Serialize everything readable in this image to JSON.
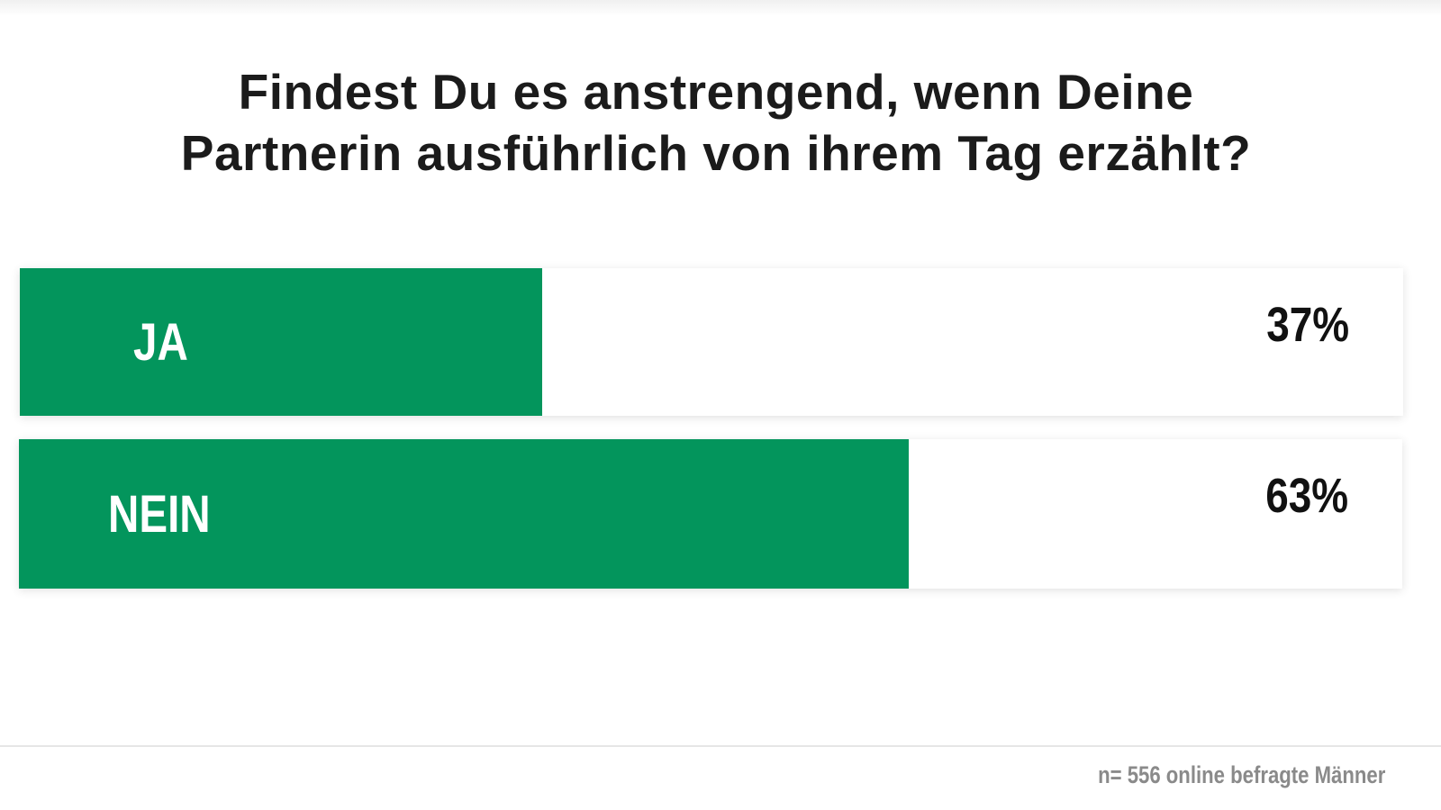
{
  "chart_data": {
    "type": "bar",
    "orientation": "horizontal",
    "title": "Findest Du es anstrengend, wenn Deine Partnerin ausführlich von ihrem Tag erzählt?",
    "title_lines": [
      "Findest Du es anstrengend, wenn Deine",
      "Partnerin ausführlich von ihrem Tag erzählt?"
    ],
    "categories": [
      "JA",
      "NEIN"
    ],
    "values": [
      37,
      63
    ],
    "value_labels": [
      "37%",
      "63%"
    ],
    "unit": "%",
    "xlim": [
      0,
      100
    ],
    "grid": false,
    "legend": "none",
    "bar_color": "#03955c",
    "note": "n= 556 online befragte Männer"
  }
}
